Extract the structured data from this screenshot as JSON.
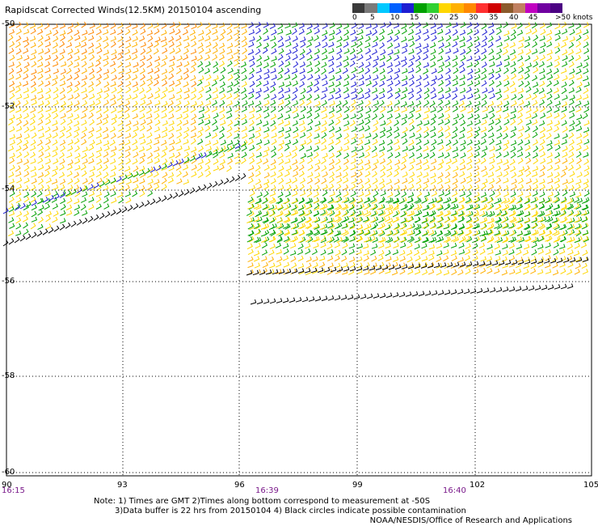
{
  "title": "Rapidscat Corrected Winds(12.5KM) 20150104 ascending",
  "scale": {
    "colors": [
      "#3a3a3a",
      "#7a7a7a",
      "#00c8ff",
      "#0060ff",
      "#1e1ed2",
      "#00a000",
      "#30d030",
      "#ffd700",
      "#ffb000",
      "#ff8800",
      "#ff3030",
      "#d00000",
      "#8b5a2b",
      "#c08060",
      "#c000c0",
      "#7000a0",
      "#4b0082"
    ],
    "labels": [
      "0",
      "5",
      "10",
      "15",
      "20",
      "25",
      "30",
      "35",
      "40",
      "45",
      ">50 knots"
    ]
  },
  "lat_labels": [
    "-50",
    "-52",
    "-54",
    "-56",
    "-58",
    "-60"
  ],
  "lon_labels": [
    "90",
    "93",
    "96",
    "99",
    "102",
    "105"
  ],
  "time_labels": [
    "16:15",
    "16:39",
    "16:40"
  ],
  "notes": [
    "Note: 1) Times are GMT 2)Times along bottom correspond to measurement at -50S",
    "3)Data buffer is 22 hrs from 20150104 4) Black circles indicate possible contamination"
  ],
  "credit": "NOAA/NESDIS/Office of Research and Applications"
}
